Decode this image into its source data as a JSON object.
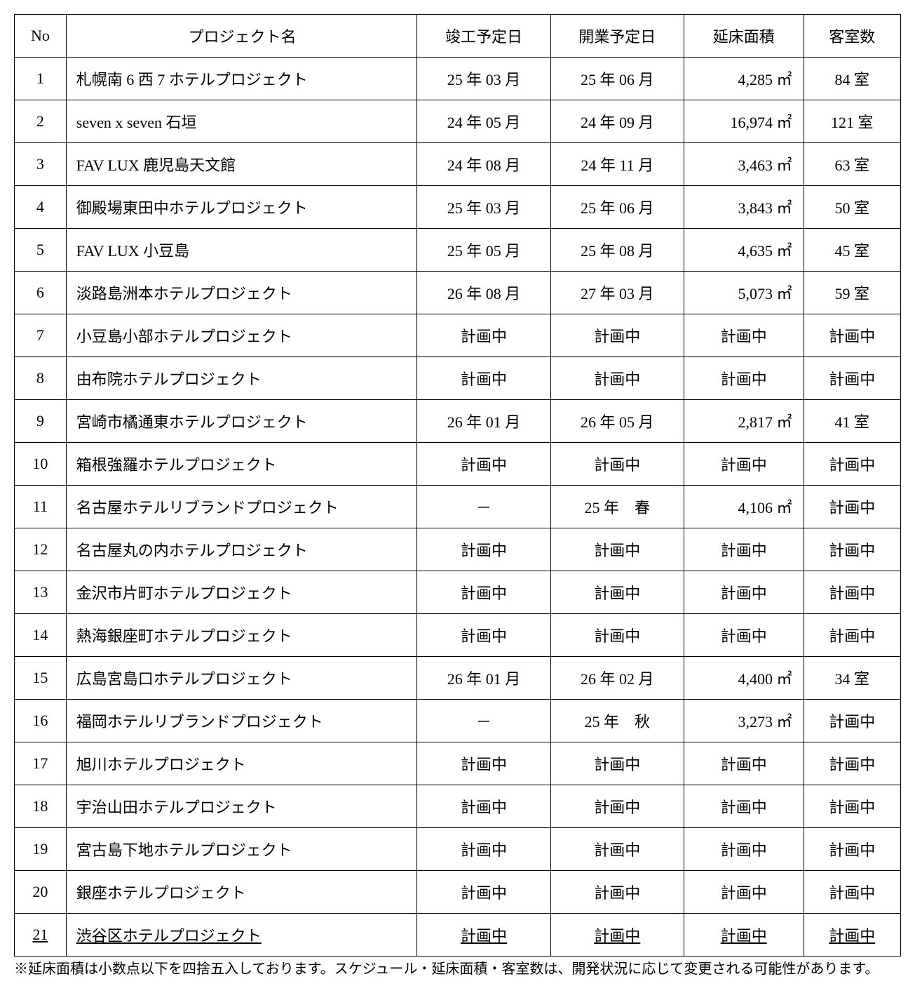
{
  "table": {
    "headers": {
      "no": "No",
      "name": "プロジェクト名",
      "completion": "竣工予定日",
      "opening": "開業予定日",
      "area": "延床面積",
      "rooms": "客室数"
    },
    "rows": [
      {
        "no": "1",
        "name": "札幌南 6 西 7 ホテルプロジェクト",
        "completion": "25 年 03 月",
        "opening": "25 年 06 月",
        "area": "4,285 ㎡",
        "rooms": "84 室",
        "area_centered": false,
        "rooms_centered": false,
        "underlined": false
      },
      {
        "no": "2",
        "name": "seven x seven  石垣",
        "completion": "24 年 05 月",
        "opening": "24 年 09 月",
        "area": "16,974 ㎡",
        "rooms": "121 室",
        "area_centered": false,
        "rooms_centered": false,
        "underlined": false
      },
      {
        "no": "3",
        "name": "FAV LUX 鹿児島天文館",
        "completion": "24 年 08 月",
        "opening": "24 年 11 月",
        "area": "3,463 ㎡",
        "rooms": "63 室",
        "area_centered": false,
        "rooms_centered": false,
        "underlined": false
      },
      {
        "no": "4",
        "name": "御殿場東田中ホテルプロジェクト",
        "completion": "25 年 03 月",
        "opening": "25 年 06 月",
        "area": "3,843 ㎡",
        "rooms": "50 室",
        "area_centered": false,
        "rooms_centered": false,
        "underlined": false
      },
      {
        "no": "5",
        "name": "FAV LUX 小豆島",
        "completion": "25 年 05 月",
        "opening": "25 年 08 月",
        "area": "4,635 ㎡",
        "rooms": "45 室",
        "area_centered": false,
        "rooms_centered": false,
        "underlined": false
      },
      {
        "no": "6",
        "name": "淡路島洲本ホテルプロジェクト",
        "completion": "26 年 08 月",
        "opening": "27 年 03 月",
        "area": "5,073 ㎡",
        "rooms": "59 室",
        "area_centered": false,
        "rooms_centered": false,
        "underlined": false
      },
      {
        "no": "7",
        "name": "小豆島小部ホテルプロジェクト",
        "completion": "計画中",
        "opening": "計画中",
        "area": "計画中",
        "rooms": "計画中",
        "area_centered": true,
        "rooms_centered": true,
        "underlined": false
      },
      {
        "no": "8",
        "name": "由布院ホテルプロジェクト",
        "completion": "計画中",
        "opening": "計画中",
        "area": "計画中",
        "rooms": "計画中",
        "area_centered": true,
        "rooms_centered": true,
        "underlined": false
      },
      {
        "no": "9",
        "name": "宮崎市橘通東ホテルプロジェクト",
        "completion": "26 年 01 月",
        "opening": "26 年 05 月",
        "area": "2,817 ㎡",
        "rooms": "41 室",
        "area_centered": false,
        "rooms_centered": false,
        "underlined": false
      },
      {
        "no": "10",
        "name": "箱根強羅ホテルプロジェクト",
        "completion": "計画中",
        "opening": "計画中",
        "area": "計画中",
        "rooms": "計画中",
        "area_centered": true,
        "rooms_centered": true,
        "underlined": false
      },
      {
        "no": "11",
        "name": "名古屋ホテルリブランドプロジェクト",
        "completion": "－",
        "opening": "25 年　春",
        "area": "4,106 ㎡",
        "rooms": "計画中",
        "area_centered": false,
        "rooms_centered": true,
        "underlined": false
      },
      {
        "no": "12",
        "name": "名古屋丸の内ホテルプロジェクト",
        "completion": "計画中",
        "opening": "計画中",
        "area": "計画中",
        "rooms": "計画中",
        "area_centered": true,
        "rooms_centered": true,
        "underlined": false
      },
      {
        "no": "13",
        "name": "金沢市片町ホテルプロジェクト",
        "completion": "計画中",
        "opening": "計画中",
        "area": "計画中",
        "rooms": "計画中",
        "area_centered": true,
        "rooms_centered": true,
        "underlined": false
      },
      {
        "no": "14",
        "name": "熱海銀座町ホテルプロジェクト",
        "completion": "計画中",
        "opening": "計画中",
        "area": "計画中",
        "rooms": "計画中",
        "area_centered": true,
        "rooms_centered": true,
        "underlined": false
      },
      {
        "no": "15",
        "name": "広島宮島口ホテルプロジェクト",
        "completion": "26 年 01 月",
        "opening": "26 年 02 月",
        "area": "4,400 ㎡",
        "rooms": "34 室",
        "area_centered": false,
        "rooms_centered": false,
        "underlined": false
      },
      {
        "no": "16",
        "name": "福岡ホテルリブランドプロジェクト",
        "completion": "－",
        "opening": "25 年　秋",
        "area": "3,273 ㎡",
        "rooms": "計画中",
        "area_centered": false,
        "rooms_centered": true,
        "underlined": false
      },
      {
        "no": "17",
        "name": "旭川ホテルプロジェクト",
        "completion": "計画中",
        "opening": "計画中",
        "area": "計画中",
        "rooms": "計画中",
        "area_centered": true,
        "rooms_centered": true,
        "underlined": false
      },
      {
        "no": "18",
        "name": "宇治山田ホテルプロジェクト",
        "completion": "計画中",
        "opening": "計画中",
        "area": "計画中",
        "rooms": "計画中",
        "area_centered": true,
        "rooms_centered": true,
        "underlined": false
      },
      {
        "no": "19",
        "name": "宮古島下地ホテルプロジェクト",
        "completion": "計画中",
        "opening": "計画中",
        "area": "計画中",
        "rooms": "計画中",
        "area_centered": true,
        "rooms_centered": true,
        "underlined": false
      },
      {
        "no": "20",
        "name": "銀座ホテルプロジェクト",
        "completion": "計画中",
        "opening": "計画中",
        "area": "計画中",
        "rooms": "計画中",
        "area_centered": true,
        "rooms_centered": true,
        "underlined": false
      },
      {
        "no": "21",
        "name": "渋谷区ホテルプロジェクト",
        "completion": "計画中",
        "opening": "計画中",
        "area": "計画中",
        "rooms": "計画中",
        "area_centered": true,
        "rooms_centered": true,
        "underlined": true
      }
    ]
  },
  "footnote": "※延床面積は小数点以下を四捨五入しております。スケジュール・延床面積・客室数は、開発状況に応じて変更される可能性があります。"
}
